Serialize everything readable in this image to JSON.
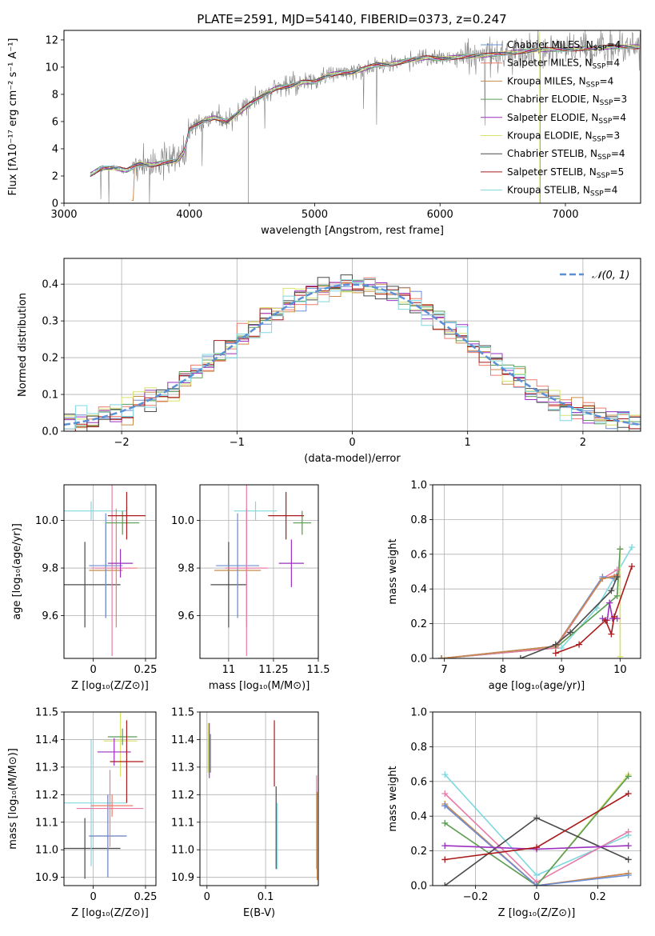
{
  "title": "PLATE=2591, MJD=54140, FIBERID=0373, z=0.247",
  "colors": {
    "Chabrier MILES": "#6a8fd6",
    "Salpeter MILES": "#ee7b6c",
    "Kroupa MILES": "#c98a4b",
    "Chabrier ELODIE": "#5a9c5a",
    "Salpeter ELODIE": "#9b30c0",
    "Kroupa ELODIE": "#d7e26a",
    "Chabrier STELIB": "#4a4a4a",
    "Salpeter STELIB": "#aa1a1a",
    "Kroupa STELIB": "#7fd8e0",
    "extra_pink": "#e87aa8",
    "gauss": "#5b8fd6",
    "grid": "#b0b0b0"
  },
  "chart_data": [
    {
      "id": "spectrum",
      "type": "line",
      "xlabel": "wavelength [Angstrom, rest frame]",
      "ylabel": "Flux [fλ10⁻¹⁷ erg cm⁻² s⁻¹ A⁻¹]",
      "xlim": [
        3000,
        7600
      ],
      "ylim": [
        0,
        12.7
      ],
      "xticks": [
        3000,
        4000,
        5000,
        6000,
        7000
      ],
      "yticks": [
        0,
        2,
        4,
        6,
        8,
        10,
        12
      ],
      "grid": false,
      "legend_position": "upper right",
      "legend": [
        {
          "label": "Chabrier MILES, N",
          "sub": "SSP",
          "suffix": "=4",
          "color": "#6a8fd6"
        },
        {
          "label": "Salpeter MILES, N",
          "sub": "SSP",
          "suffix": "=4",
          "color": "#ee7b6c"
        },
        {
          "label": "Kroupa MILES, N",
          "sub": "SSP",
          "suffix": "=4",
          "color": "#c98a4b"
        },
        {
          "label": "Chabrier ELODIE, N",
          "sub": "SSP",
          "suffix": "=3",
          "color": "#5a9c5a"
        },
        {
          "label": "Salpeter ELODIE, N",
          "sub": "SSP",
          "suffix": "=4",
          "color": "#9b30c0"
        },
        {
          "label": "Kroupa ELODIE, N",
          "sub": "SSP",
          "suffix": "=3",
          "color": "#d7e26a"
        },
        {
          "label": "Chabrier STELIB, N",
          "sub": "SSP",
          "suffix": "=4",
          "color": "#4a4a4a"
        },
        {
          "label": "Salpeter STELIB, N",
          "sub": "SSP",
          "suffix": "=5",
          "color": "#aa1a1a"
        },
        {
          "label": "Kroupa STELIB, N",
          "sub": "SSP",
          "suffix": "=4",
          "color": "#7fd8e0"
        }
      ],
      "continuum_model": {
        "x": [
          3210,
          3300,
          3400,
          3500,
          3600,
          3700,
          3800,
          3900,
          3960,
          4000,
          4100,
          4200,
          4300,
          4400,
          4500,
          4600,
          4700,
          4800,
          4900,
          5000,
          5100,
          5200,
          5300,
          5400,
          5500,
          5600,
          5700,
          5800,
          5900,
          6000,
          6200,
          6400,
          6600,
          6800,
          7000,
          7200,
          7400,
          7600
        ],
        "y": [
          2.1,
          2.6,
          2.6,
          2.4,
          2.9,
          2.8,
          3.0,
          3.1,
          3.8,
          5.4,
          6.0,
          6.3,
          6.0,
          6.7,
          7.4,
          8.0,
          8.5,
          8.6,
          8.9,
          8.9,
          9.4,
          9.6,
          9.6,
          9.9,
          10.2,
          10.2,
          10.4,
          10.6,
          10.7,
          10.6,
          10.8,
          10.9,
          11.1,
          11.3,
          11.3,
          11.4,
          11.5,
          11.5
        ]
      },
      "data_note": "observed spectrum drawn in gray with noise"
    },
    {
      "id": "residuals",
      "type": "step",
      "xlabel": "(data-model)/error",
      "ylabel": "Normed distribution",
      "xlim": [
        -2.5,
        2.5
      ],
      "ylim": [
        0,
        0.47
      ],
      "xticks": [
        -2,
        -1,
        0,
        1,
        2
      ],
      "yticks": [
        0.0,
        0.1,
        0.2,
        0.3,
        0.4
      ],
      "grid": true,
      "legend_position": "upper right",
      "legend": [
        {
          "label": "𝒩(0, 1)",
          "color": "#5b8fd6",
          "style": "dashed"
        }
      ],
      "bin_width": 0.1
    },
    {
      "id": "age_vs_Z",
      "type": "errorbar",
      "xlabel": "Z [log₁₀(Z/Z⊙)]",
      "ylabel": "age  [log₁₀(age/yr)]",
      "xlim": [
        -0.14,
        0.3
      ],
      "ylim": [
        9.42,
        10.15
      ],
      "xticks": [
        0.0,
        0.25
      ],
      "yticks": [
        9.6,
        9.8,
        10.0
      ],
      "grid": true,
      "points": [
        {
          "x": -0.04,
          "y": 9.73,
          "xerr": 0.17,
          "yerr": 0.18,
          "color": "#4a4a4a"
        },
        {
          "x": -0.01,
          "y": 10.04,
          "xerr": 0.17,
          "yerr": 0.04,
          "color": "#7fd8e0"
        },
        {
          "x": 0.06,
          "y": 9.79,
          "xerr": 0.08,
          "yerr": 0.2,
          "color": "#c98a4b"
        },
        {
          "x": 0.06,
          "y": 9.81,
          "xerr": 0.08,
          "yerr": 0.22,
          "color": "#6a8fd6"
        },
        {
          "x": 0.11,
          "y": 9.8,
          "xerr": 0.1,
          "yerr": 0.25,
          "color": "#ee7b6c"
        },
        {
          "x": 0.09,
          "y": 9.8,
          "xerr": 0.1,
          "yerr": 0.37,
          "color": "#e87aa8"
        },
        {
          "x": 0.14,
          "y": 9.99,
          "xerr": 0.08,
          "yerr": 0.05,
          "color": "#d7e26a"
        },
        {
          "x": 0.14,
          "y": 9.99,
          "xerr": 0.08,
          "yerr": 0.05,
          "color": "#5a9c5a"
        },
        {
          "x": 0.13,
          "y": 9.82,
          "xerr": 0.06,
          "yerr": 0.06,
          "color": "#9b30c0"
        },
        {
          "x": 0.16,
          "y": 10.02,
          "xerr": 0.09,
          "yerr": 0.1,
          "color": "#aa1a1a"
        }
      ]
    },
    {
      "id": "age_vs_mass",
      "type": "errorbar",
      "xlabel": "mass [log₁₀(M/M⊙)]",
      "ylabel": "",
      "xlim": [
        10.84,
        11.5
      ],
      "ylim": [
        9.42,
        10.15
      ],
      "xticks": [
        11.0,
        11.25,
        11.5
      ],
      "yticks": [
        9.6,
        9.8,
        10.0
      ],
      "grid": true,
      "points": [
        {
          "x": 11.0,
          "y": 9.73,
          "xerr": 0.1,
          "yerr": 0.18,
          "color": "#4a4a4a"
        },
        {
          "x": 11.15,
          "y": 10.04,
          "xerr": 0.12,
          "yerr": 0.04,
          "color": "#7fd8e0"
        },
        {
          "x": 11.05,
          "y": 9.79,
          "xerr": 0.13,
          "yerr": 0.2,
          "color": "#c98a4b"
        },
        {
          "x": 11.05,
          "y": 9.81,
          "xerr": 0.12,
          "yerr": 0.22,
          "color": "#6a8fd6"
        },
        {
          "x": 11.1,
          "y": 9.8,
          "xerr": 0.11,
          "yerr": 0.25,
          "color": "#ee7b6c"
        },
        {
          "x": 11.1,
          "y": 9.8,
          "xerr": 0.12,
          "yerr": 0.37,
          "color": "#e87aa8"
        },
        {
          "x": 11.41,
          "y": 9.99,
          "xerr": 0.05,
          "yerr": 0.05,
          "color": "#d7e26a"
        },
        {
          "x": 11.41,
          "y": 9.99,
          "xerr": 0.05,
          "yerr": 0.05,
          "color": "#5a9c5a"
        },
        {
          "x": 11.35,
          "y": 9.82,
          "xerr": 0.07,
          "yerr": 0.1,
          "color": "#9b30c0"
        },
        {
          "x": 11.32,
          "y": 10.02,
          "xerr": 0.1,
          "yerr": 0.1,
          "color": "#aa1a1a"
        }
      ]
    },
    {
      "id": "massweight_vs_age",
      "type": "line",
      "xlabel": "age  [log₁₀(age/yr)]",
      "ylabel": "mass weight",
      "xlim": [
        6.8,
        10.35
      ],
      "ylim": [
        0,
        1
      ],
      "xticks": [
        7,
        8,
        9,
        10
      ],
      "yticks": [
        0.0,
        0.2,
        0.4,
        0.6,
        0.8,
        1.0
      ],
      "grid": true,
      "series": [
        {
          "color": "#7fd8e0",
          "x": [
            6.95,
            8.9,
            9.0,
            9.6,
            10.2
          ],
          "y": [
            0.0,
            0.06,
            0.06,
            0.29,
            0.64
          ]
        },
        {
          "color": "#d7e26a",
          "x": [
            6.95,
            8.9,
            9.95,
            10.0,
            10.0
          ],
          "y": [
            0.0,
            0.06,
            0.36,
            0.63,
            0.01
          ]
        },
        {
          "color": "#5a9c5a",
          "x": [
            6.95,
            8.9,
            9.95,
            10.0
          ],
          "y": [
            0.0,
            0.06,
            0.36,
            0.63
          ]
        },
        {
          "color": "#e87aa8",
          "x": [
            6.95,
            8.9,
            9.7,
            9.95
          ],
          "y": [
            0.0,
            0.06,
            0.46,
            0.51
          ]
        },
        {
          "color": "#ee7b6c",
          "x": [
            6.95,
            8.9,
            9.7,
            9.95
          ],
          "y": [
            0.0,
            0.07,
            0.46,
            0.48
          ]
        },
        {
          "color": "#6a8fd6",
          "x": [
            6.95,
            8.9,
            9.7,
            9.9
          ],
          "y": [
            0.0,
            0.07,
            0.47,
            0.46
          ]
        },
        {
          "color": "#c98a4b",
          "x": [
            6.95,
            8.9,
            9.7,
            9.9
          ],
          "y": [
            0.0,
            0.07,
            0.46,
            0.47
          ]
        },
        {
          "color": "#4a4a4a",
          "x": [
            8.3,
            8.9,
            9.15,
            9.85,
            9.95
          ],
          "y": [
            0.0,
            0.08,
            0.15,
            0.39,
            0.47
          ]
        },
        {
          "color": "#9b30c0",
          "x": [
            9.7,
            9.78,
            9.82,
            9.87,
            9.95
          ],
          "y": [
            0.23,
            0.22,
            0.32,
            0.23,
            0.23
          ]
        },
        {
          "color": "#aa1a1a",
          "x": [
            8.9,
            9.3,
            9.75,
            9.85,
            9.9,
            10.2
          ],
          "y": [
            0.03,
            0.08,
            0.22,
            0.14,
            0.24,
            0.53
          ]
        }
      ]
    },
    {
      "id": "mass_vs_Z",
      "type": "errorbar",
      "xlabel": "Z [log₁₀(Z/Z⊙)]",
      "ylabel": "mass [log₁₀(M/M⊙)]",
      "xlim": [
        -0.14,
        0.3
      ],
      "ylim": [
        10.87,
        11.5
      ],
      "xticks": [
        0.0,
        0.25
      ],
      "yticks": [
        10.9,
        11.0,
        11.1,
        11.2,
        11.3,
        11.4,
        11.5
      ],
      "grid": true,
      "points": [
        {
          "x": -0.04,
          "y": 11.005,
          "xerr": 0.17,
          "yerr": 0.11,
          "color": "#4a4a4a"
        },
        {
          "x": -0.01,
          "y": 11.17,
          "xerr": 0.17,
          "yerr": 0.23,
          "color": "#7fd8e0"
        },
        {
          "x": 0.07,
          "y": 11.05,
          "xerr": 0.09,
          "yerr": 0.15,
          "color": "#c98a4b"
        },
        {
          "x": 0.07,
          "y": 11.05,
          "xerr": 0.09,
          "yerr": 0.15,
          "color": "#6a8fd6"
        },
        {
          "x": 0.08,
          "y": 11.15,
          "xerr": 0.16,
          "yerr": 0.14,
          "color": "#e87aa8"
        },
        {
          "x": 0.09,
          "y": 11.16,
          "xerr": 0.1,
          "yerr": 0.04,
          "color": "#ee7b6c"
        },
        {
          "x": 0.13,
          "y": 11.395,
          "xerr": 0.08,
          "yerr": 0.13,
          "color": "#d7e26a"
        },
        {
          "x": 0.14,
          "y": 11.41,
          "xerr": 0.07,
          "yerr": 0.03,
          "color": "#5a9c5a"
        },
        {
          "x": 0.1,
          "y": 11.355,
          "xerr": 0.08,
          "yerr": 0.05,
          "color": "#9b30c0"
        },
        {
          "x": 0.16,
          "y": 11.32,
          "xerr": 0.08,
          "yerr": 0.15,
          "color": "#aa1a1a"
        }
      ]
    },
    {
      "id": "mass_vs_ebv",
      "type": "errorbar",
      "xlabel": "E(B-V)",
      "ylabel": "",
      "xlim": [
        -0.012,
        0.19
      ],
      "ylim": [
        10.87,
        11.5
      ],
      "xticks": [
        0.0,
        0.1
      ],
      "yticks": [
        10.9,
        11.0,
        11.1,
        11.2,
        11.3,
        11.4,
        11.5
      ],
      "grid": true,
      "points": [
        {
          "x": 0.002,
          "y": 11.37,
          "xerr": 0.0,
          "yerr": 0.09,
          "color": "#d7e26a"
        },
        {
          "x": 0.004,
          "y": 11.36,
          "xerr": 0.0,
          "yerr": 0.1,
          "color": "#9b30c0"
        },
        {
          "x": 0.006,
          "y": 11.35,
          "xerr": 0.0,
          "yerr": 0.07,
          "color": "#5a9c5a"
        },
        {
          "x": 0.115,
          "y": 11.35,
          "xerr": 0.0,
          "yerr": 0.12,
          "color": "#aa1a1a"
        },
        {
          "x": 0.118,
          "y": 11.08,
          "xerr": 0.0,
          "yerr": 0.15,
          "color": "#4a4a4a"
        },
        {
          "x": 0.12,
          "y": 11.05,
          "xerr": 0.0,
          "yerr": 0.12,
          "color": "#7fd8e0"
        },
        {
          "x": 0.187,
          "y": 11.1,
          "xerr": 0.0,
          "yerr": 0.17,
          "color": "#e87aa8"
        },
        {
          "x": 0.188,
          "y": 11.05,
          "xerr": 0.0,
          "yerr": 0.16,
          "color": "#c98a4b"
        }
      ]
    },
    {
      "id": "massweight_vs_Z",
      "type": "line",
      "xlabel": "Z [log₁₀(Z/Z⊙)]",
      "ylabel": "mass weight",
      "xlim": [
        -0.34,
        0.34
      ],
      "ylim": [
        0,
        1
      ],
      "xticks": [
        -0.2,
        0.0,
        0.2
      ],
      "yticks": [
        0.0,
        0.2,
        0.4,
        0.6,
        0.8,
        1.0
      ],
      "grid": true,
      "series": [
        {
          "color": "#7fd8e0",
          "x": [
            -0.3,
            0.0,
            0.3
          ],
          "y": [
            0.64,
            0.06,
            0.29
          ]
        },
        {
          "color": "#e87aa8",
          "x": [
            -0.3,
            0.0,
            0.3
          ],
          "y": [
            0.53,
            0.02,
            0.31
          ]
        },
        {
          "color": "#d7e26a",
          "x": [
            -0.3,
            0.0,
            0.3
          ],
          "y": [
            0.36,
            0.0,
            0.64
          ]
        },
        {
          "color": "#5a9c5a",
          "x": [
            -0.3,
            0.0,
            0.3
          ],
          "y": [
            0.36,
            0.0,
            0.63
          ]
        },
        {
          "color": "#ee7b6c",
          "x": [
            -0.3,
            0.0,
            0.3
          ],
          "y": [
            0.46,
            0.0,
            0.07
          ]
        },
        {
          "color": "#c98a4b",
          "x": [
            -0.3,
            0.0,
            0.3
          ],
          "y": [
            0.47,
            0.0,
            0.07
          ]
        },
        {
          "color": "#6a8fd6",
          "x": [
            -0.3,
            0.0,
            0.3
          ],
          "y": [
            0.46,
            0.0,
            0.06
          ]
        },
        {
          "color": "#4a4a4a",
          "x": [
            -0.3,
            0.0,
            0.3
          ],
          "y": [
            0.0,
            0.39,
            0.15
          ]
        },
        {
          "color": "#9b30c0",
          "x": [
            -0.3,
            0.0,
            0.3
          ],
          "y": [
            0.23,
            0.21,
            0.23
          ]
        },
        {
          "color": "#aa1a1a",
          "x": [
            -0.3,
            0.0,
            0.3
          ],
          "y": [
            0.15,
            0.22,
            0.53
          ]
        }
      ]
    }
  ]
}
